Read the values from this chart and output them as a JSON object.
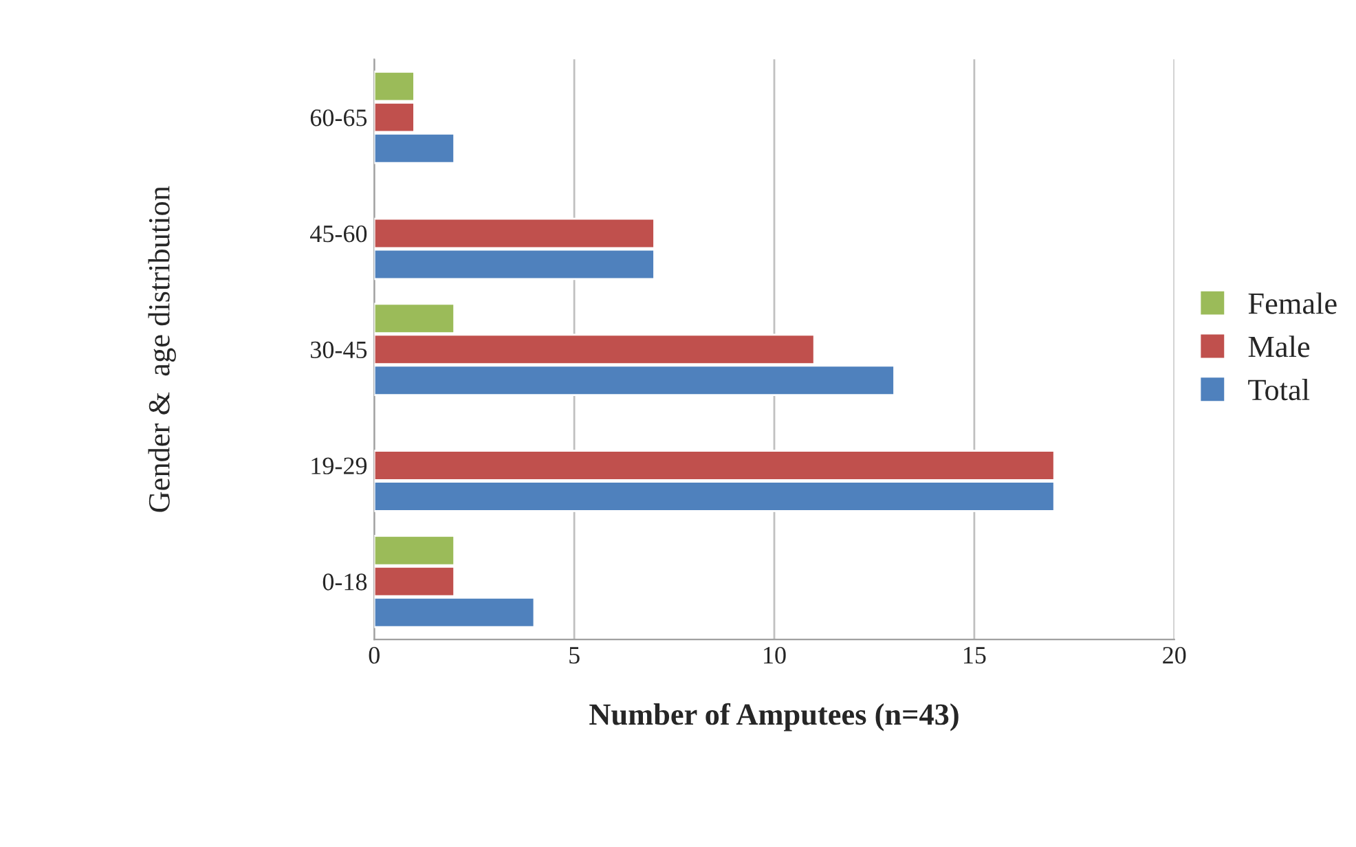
{
  "chart_data": {
    "type": "bar",
    "orientation": "horizontal",
    "categories": [
      "60-65",
      "45-60",
      "30-45",
      "19-29",
      "0-18"
    ],
    "series": [
      {
        "name": "Female",
        "color": "#9bbb59",
        "values": [
          1,
          null,
          2,
          null,
          2
        ]
      },
      {
        "name": "Male",
        "color": "#c0504d",
        "values": [
          1,
          7,
          11,
          17,
          2
        ]
      },
      {
        "name": "Total",
        "color": "#4f81bd",
        "values": [
          2,
          7,
          13,
          17,
          4
        ]
      }
    ],
    "xlabel": "Number of Amputees (n=43)",
    "ylabel": "Gender &  age distribution",
    "xlim": [
      0,
      20
    ],
    "xticks": [
      0,
      5,
      10,
      15,
      20
    ],
    "grid": "x",
    "legend": "right"
  }
}
